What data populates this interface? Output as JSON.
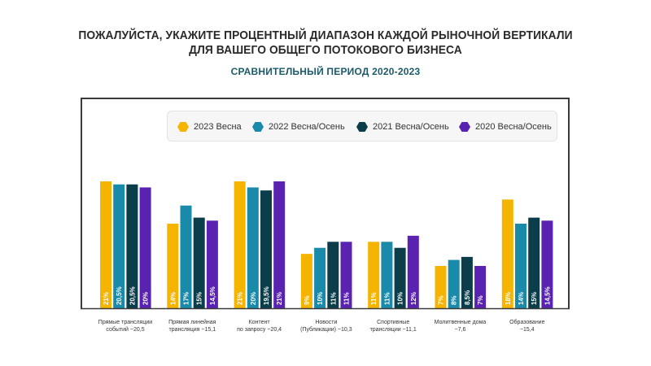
{
  "chart_data": {
    "type": "bar",
    "title_line1": "ПОЖАЛУЙСТА, УКАЖИТЕ ПРОЦЕНТНЫЙ ДИАПАЗОН КАЖДОЙ РЫНОЧНОЙ ВЕРТИКАЛИ",
    "title_line2": "ДЛЯ ВАШЕГО ОБЩЕГО ПОТОКОВОГО БИЗНЕСА",
    "subtitle": "СРАВНИТЕЛЬНЫЙ ПЕРИОД 2020-2023",
    "categories": [
      "Прямые трансляции\nсобытий ~20,5",
      "Прямая линейная\nтрансляция ~15,1",
      "Контент\nпо запросу ~20,4",
      "Новости\n(Публикации) ~10,3",
      "Спортивные\nтрансляции ~11,1",
      "Молитвенные дома\n~7,6",
      "Образование\n~15,4"
    ],
    "series": [
      {
        "name": "2023 Весна",
        "color": "#f5b400",
        "values": [
          21,
          14,
          21,
          9,
          11,
          7,
          18
        ],
        "labels": [
          "21%",
          "14%",
          "21%",
          "9%",
          "11%",
          "7%",
          "18%"
        ]
      },
      {
        "name": "2022 Весна/Осень",
        "color": "#1a8aaa",
        "values": [
          20.5,
          17,
          20,
          10,
          11,
          8,
          14
        ],
        "labels": [
          "20,5%",
          "17%",
          "20%",
          "10%",
          "11%",
          "8%",
          "14%"
        ]
      },
      {
        "name": "2021 Весна/Осень",
        "color": "#0b3d4a",
        "values": [
          20.5,
          15,
          19.5,
          11,
          10,
          8.5,
          15
        ],
        "labels": [
          "20,5%",
          "15%",
          "19,5%",
          "11%",
          "10%",
          "8,5%",
          "15%"
        ]
      },
      {
        "name": "2020 Весна/Осень",
        "color": "#5a22b0",
        "values": [
          20,
          14.5,
          21,
          11,
          12,
          7,
          14.5
        ],
        "labels": [
          "20%",
          "14,5%",
          "21%",
          "11%",
          "12%",
          "7%",
          "14,5%"
        ]
      }
    ],
    "ylim": [
      0,
      21
    ],
    "legend": "top-right",
    "grid": false
  }
}
